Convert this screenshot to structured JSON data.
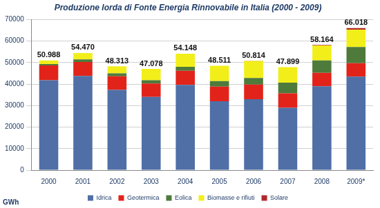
{
  "chart_data": {
    "type": "bar",
    "title": "Produzione lorda di Fonte Energia Rinnovabile in Italia (2000 - 2009)",
    "y_label": "GWh",
    "categories": [
      "2000",
      "2001",
      "2002",
      "2003",
      "2004",
      "2005",
      "2006",
      "2007",
      "2008",
      "2009*"
    ],
    "series": [
      {
        "name": "Idrica",
        "color": "#4f6fa6",
        "values": [
          41800,
          43800,
          37300,
          34000,
          39600,
          32000,
          33000,
          29000,
          39000,
          43500
        ]
      },
      {
        "name": "Geotermica",
        "color": "#e2231a",
        "values": [
          6900,
          6500,
          6300,
          6300,
          6600,
          6800,
          6800,
          6700,
          6200,
          6200
        ]
      },
      {
        "name": "Eolica",
        "color": "#4e7a3c",
        "values": [
          600,
          1200,
          1400,
          1500,
          1800,
          2600,
          3000,
          5000,
          5800,
          7500
        ]
      },
      {
        "name": "Biomasse e rifiuti",
        "color": "#f2ee1a",
        "values": [
          1680,
          2960,
          3305,
          5273,
          6144,
          7107,
          7992,
          7160,
          6971,
          8142
        ]
      },
      {
        "name": "Solare",
        "color": "#b0282a",
        "values": [
          8,
          10,
          8,
          5,
          4,
          4,
          22,
          39,
          193,
          676
        ]
      }
    ],
    "stacked": true,
    "ylim": [
      0,
      70000
    ],
    "yticks": [
      0,
      10000,
      20000,
      30000,
      40000,
      50000,
      60000,
      70000
    ],
    "grid": true,
    "legend": "bottom",
    "totals": {
      "values": [
        50988,
        54470,
        48313,
        47078,
        54148,
        48511,
        50814,
        47899,
        58164,
        66018
      ],
      "value_labels": [
        "50.988",
        "54.470",
        "48.313",
        "47.078",
        "54.148",
        "48.511",
        "50.814",
        "47.899",
        "58.164",
        "66.018"
      ]
    }
  }
}
